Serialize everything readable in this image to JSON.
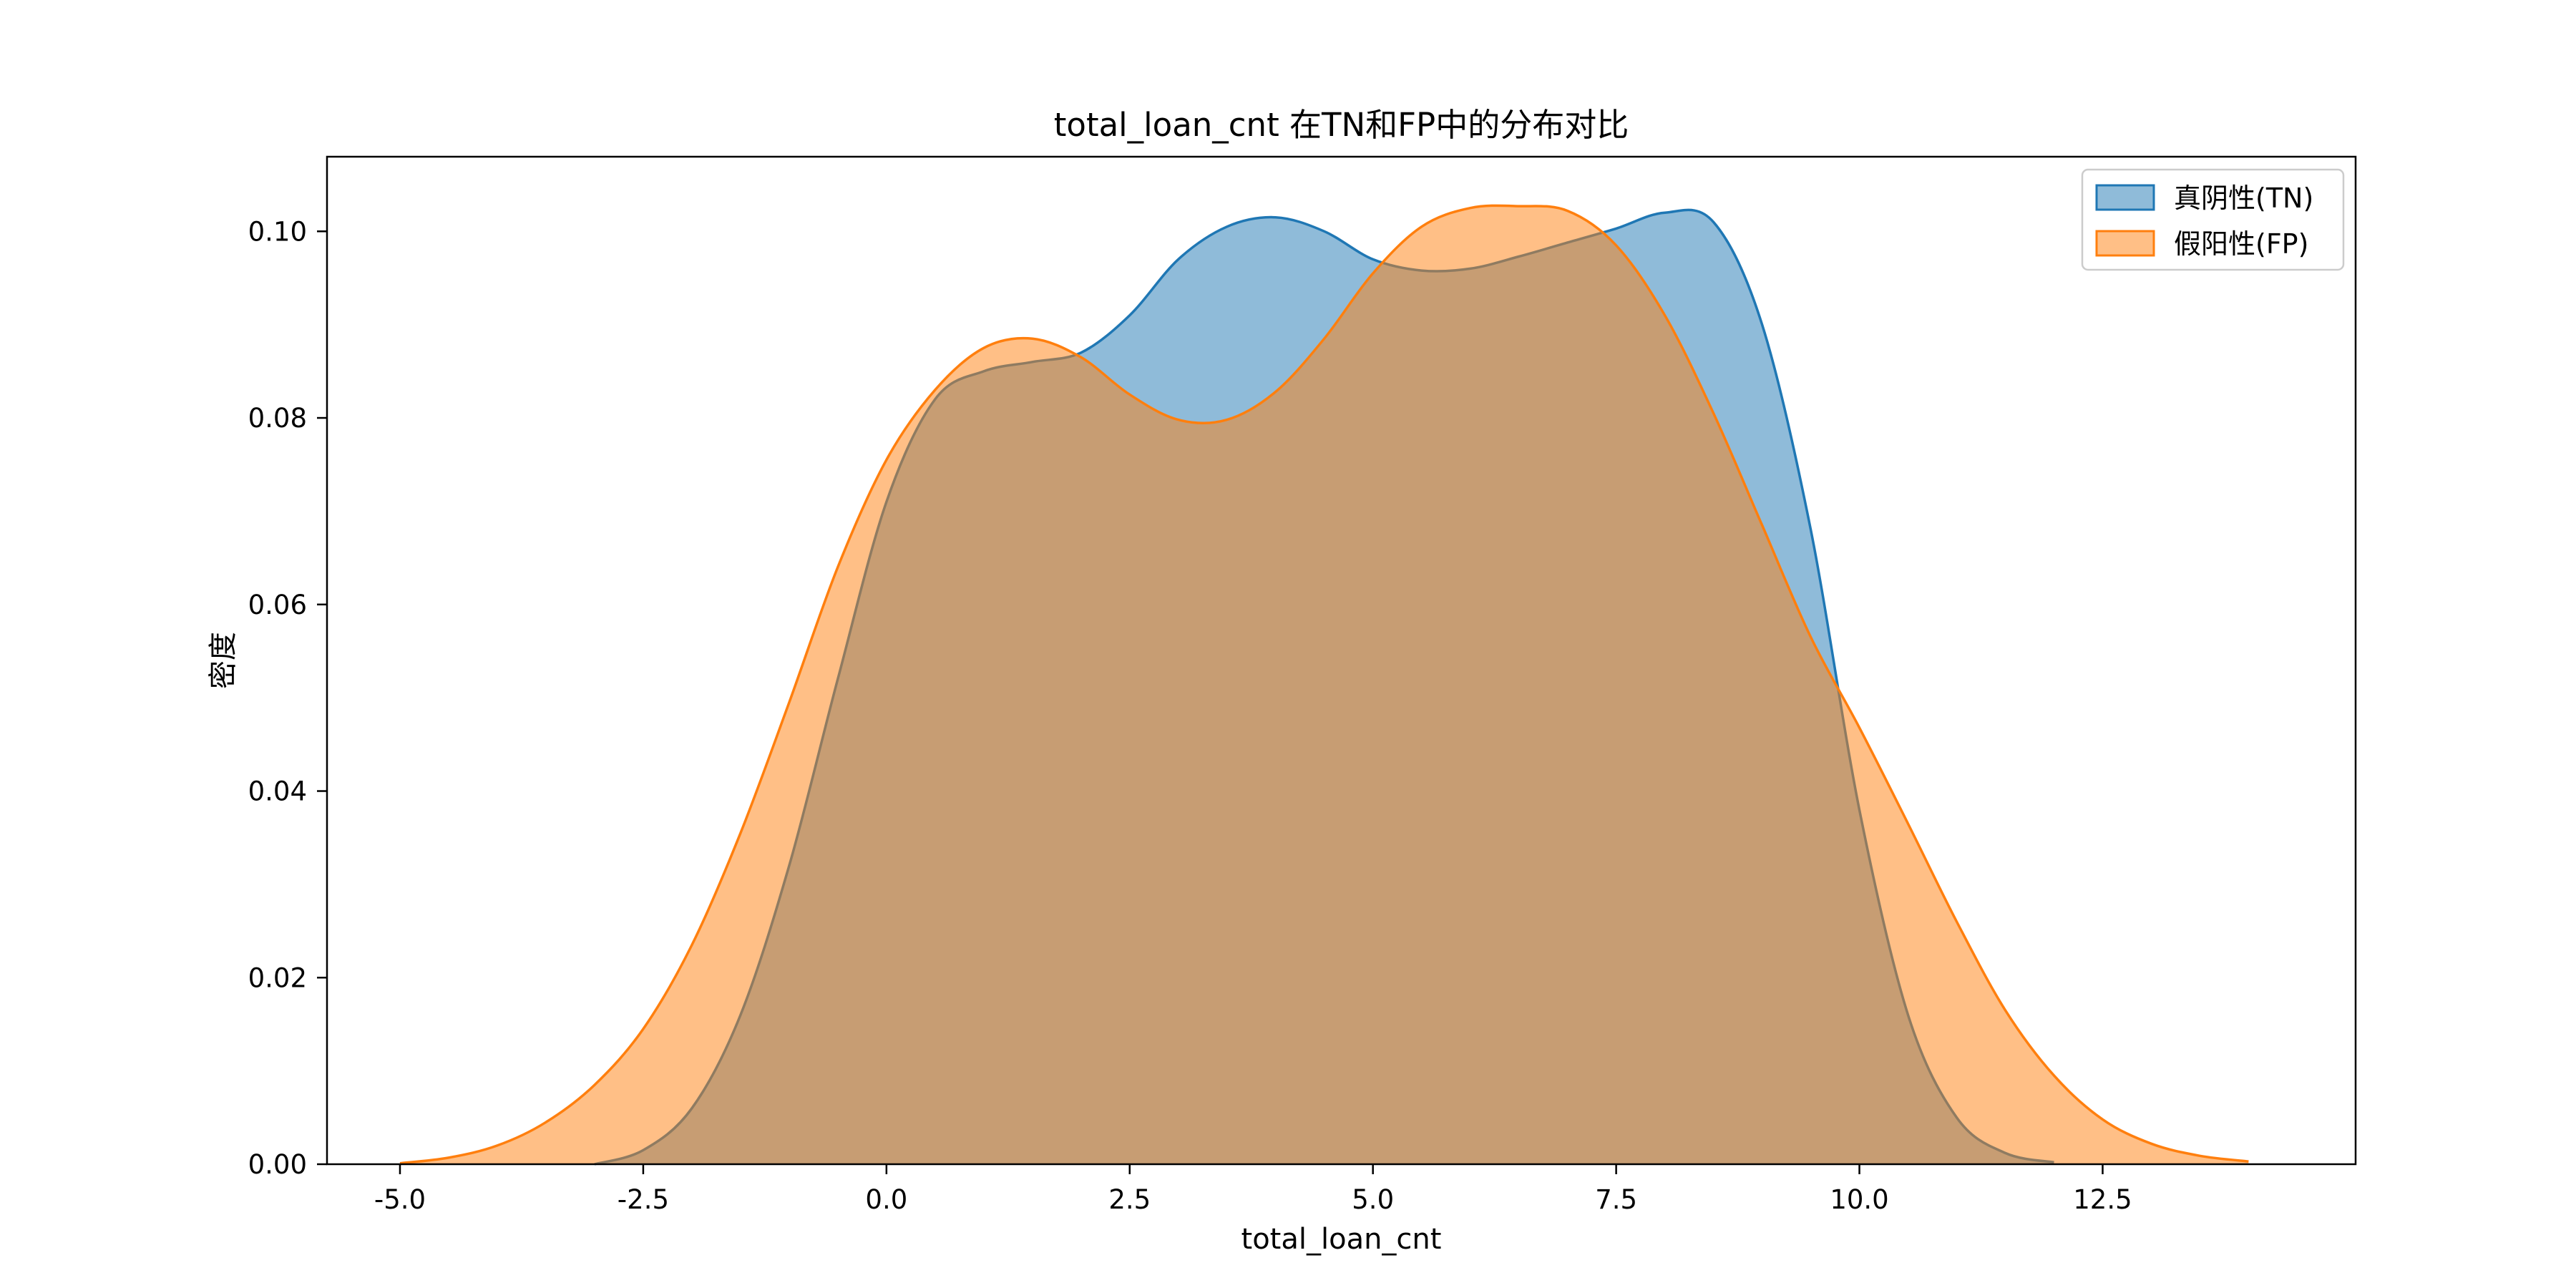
{
  "chart_data": {
    "type": "area",
    "title": "total_loan_cnt 在TN和FP中的分布对比",
    "xlabel": "total_loan_cnt",
    "ylabel": "密度",
    "xlim": [
      -5.75,
      15.1
    ],
    "ylim": [
      0,
      0.108
    ],
    "xticks": [
      "-5.0",
      "-2.5",
      "0.0",
      "2.5",
      "5.0",
      "7.5",
      "10.0",
      "12.5"
    ],
    "xtick_values": [
      -5,
      -2.5,
      0,
      2.5,
      5,
      7.5,
      10,
      12.5
    ],
    "yticks": [
      "0.00",
      "0.02",
      "0.04",
      "0.06",
      "0.08",
      "0.10"
    ],
    "ytick_values": [
      0,
      0.02,
      0.04,
      0.06,
      0.08,
      0.1
    ],
    "grid": false,
    "legend_position": "top-right",
    "series": [
      {
        "name": "真阴性(TN)",
        "color": "#1f77b4",
        "fill_alpha": 0.5,
        "x": [
          -3.0,
          -2.5,
          -2.0,
          -1.5,
          -1.0,
          -0.5,
          0.0,
          0.5,
          1.0,
          1.5,
          2.0,
          2.5,
          3.0,
          3.5,
          4.0,
          4.5,
          5.0,
          5.5,
          6.0,
          6.5,
          7.0,
          7.5,
          8.0,
          8.5,
          9.0,
          9.5,
          10.0,
          10.5,
          11.0,
          11.5,
          12.0
        ],
        "y": [
          0.0,
          0.0015,
          0.006,
          0.016,
          0.032,
          0.052,
          0.071,
          0.082,
          0.085,
          0.086,
          0.087,
          0.091,
          0.097,
          0.1005,
          0.1015,
          0.1,
          0.097,
          0.0958,
          0.096,
          0.0973,
          0.0988,
          0.1003,
          0.102,
          0.101,
          0.09,
          0.068,
          0.038,
          0.016,
          0.005,
          0.0012,
          0.0002
        ]
      },
      {
        "name": "假阳性(FP)",
        "color": "#ff7f0e",
        "fill_alpha": 0.5,
        "x": [
          -5.0,
          -4.5,
          -4.0,
          -3.5,
          -3.0,
          -2.5,
          -2.0,
          -1.5,
          -1.0,
          -0.5,
          0.0,
          0.5,
          1.0,
          1.5,
          2.0,
          2.5,
          3.0,
          3.5,
          4.0,
          4.5,
          5.0,
          5.5,
          6.0,
          6.5,
          7.0,
          7.5,
          8.0,
          8.5,
          9.0,
          9.5,
          10.0,
          10.5,
          11.0,
          11.5,
          12.0,
          12.5,
          13.0,
          13.5,
          14.0
        ],
        "y": [
          0.0001,
          0.0007,
          0.002,
          0.0045,
          0.0085,
          0.0145,
          0.0235,
          0.0355,
          0.0495,
          0.064,
          0.0755,
          0.083,
          0.0875,
          0.0885,
          0.0865,
          0.0825,
          0.0798,
          0.0798,
          0.0828,
          0.0885,
          0.0955,
          0.1005,
          0.1025,
          0.1027,
          0.1022,
          0.0985,
          0.091,
          0.0805,
          0.0685,
          0.0565,
          0.0468,
          0.0365,
          0.026,
          0.0165,
          0.0095,
          0.0048,
          0.0022,
          0.0009,
          0.0003
        ]
      }
    ]
  }
}
